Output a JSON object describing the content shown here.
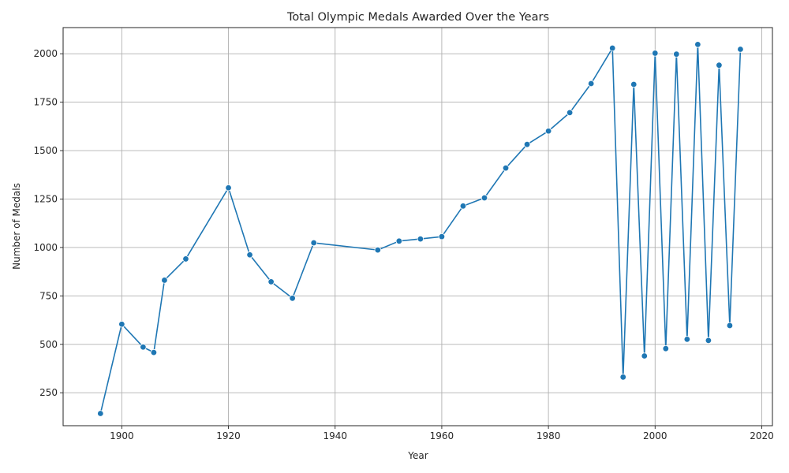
{
  "chart_data": {
    "type": "line",
    "title": "Total Olympic Medals Awarded Over the Years",
    "xlabel": "Year",
    "ylabel": "Number of Medals",
    "xlim": [
      1889,
      2022
    ],
    "ylim": [
      80,
      2135
    ],
    "xticks": [
      1900,
      1920,
      1940,
      1960,
      1980,
      2000,
      2020
    ],
    "yticks": [
      250,
      500,
      750,
      1000,
      1250,
      1500,
      1750,
      2000
    ],
    "grid": true,
    "legend": "none",
    "series": [
      {
        "color": "#1f77b4",
        "marker": "circle",
        "points": [
          {
            "x": 1896,
            "y": 143
          },
          {
            "x": 1900,
            "y": 604
          },
          {
            "x": 1904,
            "y": 486
          },
          {
            "x": 1906,
            "y": 458
          },
          {
            "x": 1908,
            "y": 831
          },
          {
            "x": 1912,
            "y": 941
          },
          {
            "x": 1920,
            "y": 1308
          },
          {
            "x": 1924,
            "y": 962
          },
          {
            "x": 1928,
            "y": 823
          },
          {
            "x": 1932,
            "y": 738
          },
          {
            "x": 1936,
            "y": 1024
          },
          {
            "x": 1948,
            "y": 987
          },
          {
            "x": 1952,
            "y": 1033
          },
          {
            "x": 1956,
            "y": 1044
          },
          {
            "x": 1960,
            "y": 1056
          },
          {
            "x": 1964,
            "y": 1214
          },
          {
            "x": 1968,
            "y": 1256
          },
          {
            "x": 1972,
            "y": 1410
          },
          {
            "x": 1976,
            "y": 1532
          },
          {
            "x": 1980,
            "y": 1601
          },
          {
            "x": 1984,
            "y": 1696
          },
          {
            "x": 1988,
            "y": 1846
          },
          {
            "x": 1992,
            "y": 2029
          },
          {
            "x": 1994,
            "y": 331
          },
          {
            "x": 1996,
            "y": 1842
          },
          {
            "x": 1998,
            "y": 440
          },
          {
            "x": 2000,
            "y": 2003
          },
          {
            "x": 2002,
            "y": 478
          },
          {
            "x": 2004,
            "y": 1998
          },
          {
            "x": 2006,
            "y": 526
          },
          {
            "x": 2008,
            "y": 2048
          },
          {
            "x": 2010,
            "y": 520
          },
          {
            "x": 2012,
            "y": 1941
          },
          {
            "x": 2014,
            "y": 597
          },
          {
            "x": 2016,
            "y": 2023
          }
        ]
      }
    ]
  }
}
